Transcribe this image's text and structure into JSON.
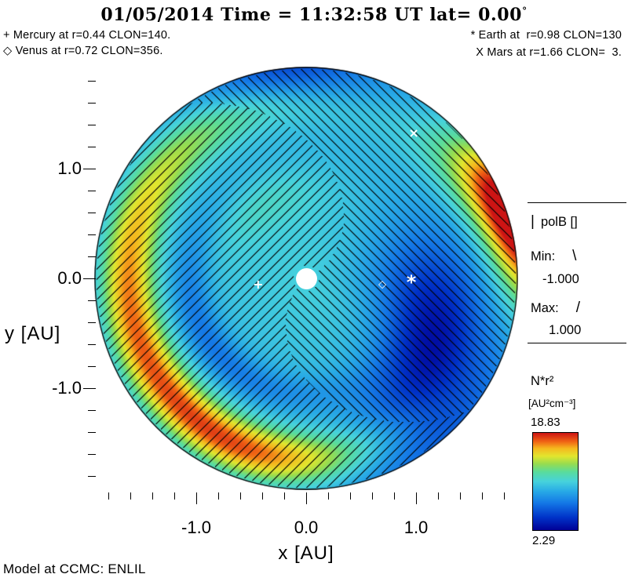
{
  "title": {
    "text": "01/05/2014 Time = 11:32:58 UT lat= 0.00",
    "degree": "°"
  },
  "annotations": {
    "mercury": "+ Mercury at r=0.44 CLON=140.",
    "venus": "◇ Venus at r=0.72 CLON=356.",
    "earth": "* Earth at  r=0.98 CLON=130",
    "mars": "X Mars at r=1.66 CLON=  3."
  },
  "axes": {
    "y_label": "y [AU]",
    "x_label": "x [AU]",
    "y_tick_labels": [
      "1.0",
      "0.0",
      "-1.0"
    ],
    "x_tick_labels": [
      "-1.0",
      "0.0",
      "1.0"
    ]
  },
  "legend_polB": {
    "symbol": "|",
    "title": "polB []",
    "min_label": "Min:",
    "min_glyph": "\\",
    "min_value": "-1.000",
    "max_label": "Max:",
    "max_glyph": "/",
    "max_value": "1.000"
  },
  "colorbar": {
    "title": "N*r²",
    "units": "[AU²cm⁻³]",
    "max": "18.83",
    "min": "2.29"
  },
  "footer": {
    "text": "Model at CCMC: ENLIL"
  },
  "plot": {
    "markers": [
      {
        "name": "Mercury",
        "glyph": "+",
        "x_au": -0.437,
        "y_au": -0.054
      },
      {
        "name": "Venus",
        "glyph": "◇",
        "x_au": 0.693,
        "y_au": -0.057
      },
      {
        "name": "Earth",
        "glyph": "*",
        "x_au": 0.957,
        "y_au": 0.0
      },
      {
        "name": "Mars",
        "glyph": "×",
        "x_au": 0.979,
        "y_au": 1.321
      }
    ]
  },
  "colormap": [
    {
      "v": 0.0,
      "hex": "#000096"
    },
    {
      "v": 0.13,
      "hex": "#0032c8"
    },
    {
      "v": 0.28,
      "hex": "#1478e6"
    },
    {
      "v": 0.4,
      "hex": "#28aae6"
    },
    {
      "v": 0.5,
      "hex": "#46d2dc"
    },
    {
      "v": 0.6,
      "hex": "#5adc9b"
    },
    {
      "v": 0.68,
      "hex": "#96dc50"
    },
    {
      "v": 0.76,
      "hex": "#e1e62e"
    },
    {
      "v": 0.84,
      "hex": "#f5b81e"
    },
    {
      "v": 0.91,
      "hex": "#f06414"
    },
    {
      "v": 1.0,
      "hex": "#cd1414"
    }
  ],
  "chart_data": {
    "type": "heatmap",
    "title": "01/05/2014 Time = 11:32:58 UT lat= 0.00°",
    "model": "ENLIL",
    "facility": "CCMC",
    "projection": "heliospheric ecliptic-plane polar slice",
    "quantity": "N*r²",
    "units": "AU²cm⁻³",
    "value_range": [
      2.29,
      18.83
    ],
    "overlay": {
      "name": "polB",
      "min": -1.0,
      "max": 1.0,
      "min_hatch": "\\",
      "max_hatch": "/"
    },
    "xlabel": "x [AU]",
    "ylabel": "y [AU]",
    "x_ticks": [
      -1.0,
      0.0,
      1.0
    ],
    "y_ticks": [
      -1.0,
      0.0,
      1.0
    ],
    "r_max_au": 1.93,
    "datetime": "01/05/2014 11:32:58 UT",
    "lat_deg": 0.0,
    "bodies": [
      {
        "name": "Mercury",
        "marker": "+",
        "r_au": 0.44,
        "clon_deg": 140
      },
      {
        "name": "Venus",
        "marker": "diamond",
        "r_au": 0.72,
        "clon_deg": 356
      },
      {
        "name": "Earth",
        "marker": "*",
        "r_au": 0.98,
        "clon_deg": 130
      },
      {
        "name": "Mars",
        "marker": "X",
        "r_au": 1.66,
        "clon_deg": 3
      }
    ]
  }
}
